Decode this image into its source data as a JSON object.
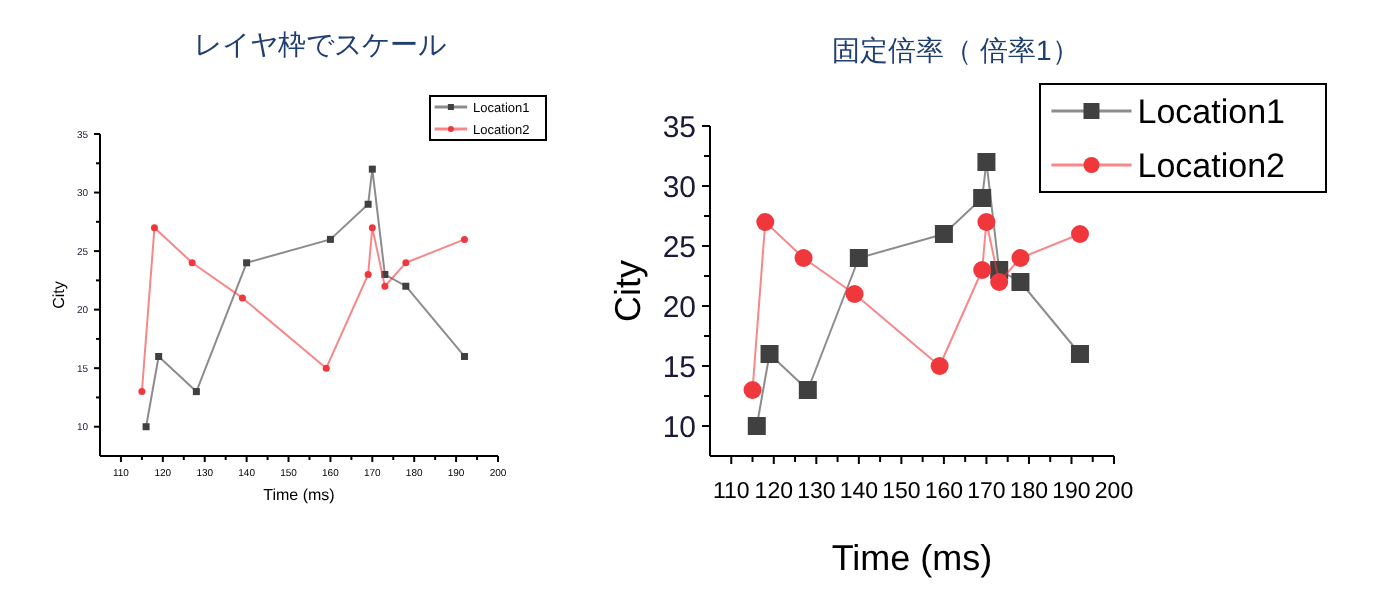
{
  "chart_data": [
    {
      "type": "line",
      "title": "レイヤ枠でスケール",
      "xlabel": "Time (ms)",
      "ylabel": "City",
      "xlim": [
        105,
        200
      ],
      "ylim": [
        7.5,
        35
      ],
      "xticks": [
        110,
        120,
        130,
        140,
        150,
        160,
        170,
        180,
        190,
        200
      ],
      "yticks": [
        10,
        15,
        20,
        25,
        30,
        35
      ],
      "legend": "top right",
      "grid": false,
      "series": [
        {
          "name": "Location1",
          "color": "#404040",
          "marker": "square",
          "x": [
            116,
            119,
            128,
            140,
            160,
            169,
            170,
            173,
            178,
            192
          ],
          "values": [
            10,
            16,
            13,
            24,
            26,
            29,
            32,
            23,
            22,
            16
          ]
        },
        {
          "name": "Location2",
          "color": "#f0383c",
          "marker": "circle",
          "x": [
            115,
            118,
            127,
            139,
            159,
            169,
            170,
            173,
            178,
            192
          ],
          "values": [
            13,
            27,
            24,
            21,
            15,
            23,
            27,
            22,
            24,
            26
          ]
        }
      ]
    },
    {
      "type": "line",
      "title": "固定倍率（ 倍率1）",
      "xlabel": "Time (ms)",
      "ylabel": "City",
      "xlim": [
        105,
        200
      ],
      "ylim": [
        7.5,
        35
      ],
      "xticks": [
        110,
        120,
        130,
        140,
        150,
        160,
        170,
        180,
        190,
        200
      ],
      "yticks": [
        10,
        15,
        20,
        25,
        30,
        35
      ],
      "legend": "top right",
      "grid": false,
      "series": [
        {
          "name": "Location1",
          "color": "#404040",
          "marker": "square",
          "x": [
            116,
            119,
            128,
            140,
            160,
            169,
            170,
            173,
            178,
            192
          ],
          "values": [
            10,
            16,
            13,
            24,
            26,
            29,
            32,
            23,
            22,
            16
          ]
        },
        {
          "name": "Location2",
          "color": "#f0383c",
          "marker": "circle",
          "x": [
            115,
            118,
            127,
            139,
            159,
            169,
            170,
            173,
            178,
            192
          ],
          "values": [
            13,
            27,
            24,
            21,
            15,
            23,
            27,
            22,
            24,
            26
          ]
        }
      ]
    }
  ]
}
